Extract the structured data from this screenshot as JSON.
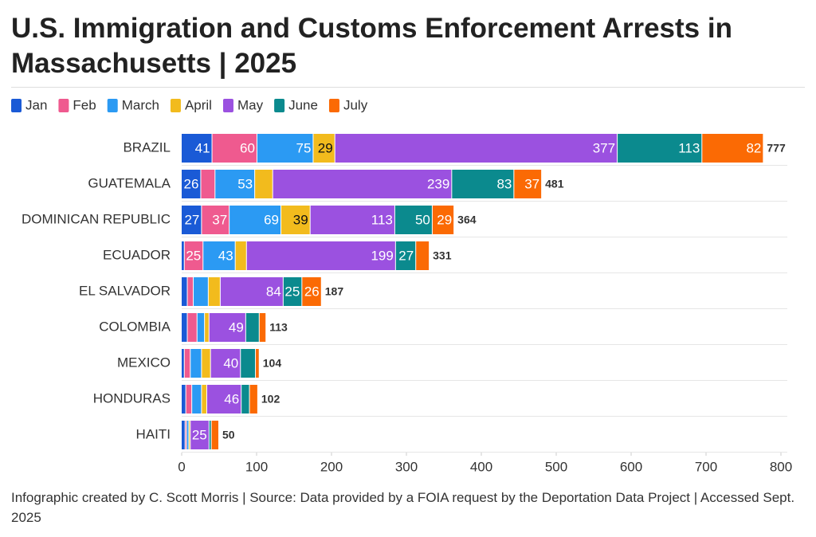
{
  "chart_data": {
    "type": "stacked-bar-horizontal",
    "title": "U.S. Immigration and Customs Enforcement Arrests in Massachusetts | 2025",
    "footer": "Infographic created by C. Scott Morris | Source: Data provided by a FOIA request by the Deportation Data Project | Accessed Sept. 2025",
    "categories": [
      "BRAZIL",
      "GUATEMALA",
      "DOMINICAN REPUBLIC",
      "ECUADOR",
      "EL SALVADOR",
      "COLOMBIA",
      "MEXICO",
      "HONDURAS",
      "HAITI"
    ],
    "series": [
      {
        "name": "Jan",
        "color": "#1a5ad6",
        "values": [
          41,
          26,
          27,
          4,
          8,
          8,
          4,
          6,
          5
        ]
      },
      {
        "name": "Feb",
        "color": "#ef5a8f",
        "values": [
          60,
          19,
          37,
          25,
          8,
          13,
          8,
          8,
          2
        ]
      },
      {
        "name": "March",
        "color": "#2b9af3",
        "values": [
          75,
          53,
          69,
          43,
          20,
          10,
          15,
          13,
          3
        ]
      },
      {
        "name": "April",
        "color": "#f2bb1d",
        "values": [
          29,
          24,
          39,
          15,
          16,
          6,
          12,
          7,
          2
        ]
      },
      {
        "name": "May",
        "color": "#9b51e0",
        "values": [
          377,
          239,
          113,
          199,
          84,
          49,
          40,
          46,
          25
        ]
      },
      {
        "name": "June",
        "color": "#0b8a8e",
        "values": [
          113,
          83,
          50,
          27,
          25,
          18,
          20,
          11,
          3
        ]
      },
      {
        "name": "July",
        "color": "#fb6a04",
        "values": [
          82,
          37,
          29,
          18,
          26,
          9,
          5,
          11,
          10
        ]
      }
    ],
    "totals": [
      777,
      481,
      364,
      331,
      187,
      113,
      104,
      102,
      50
    ],
    "xlim": [
      0,
      800
    ],
    "xticks": [
      0,
      100,
      200,
      300,
      400,
      500,
      600,
      700,
      800
    ]
  }
}
